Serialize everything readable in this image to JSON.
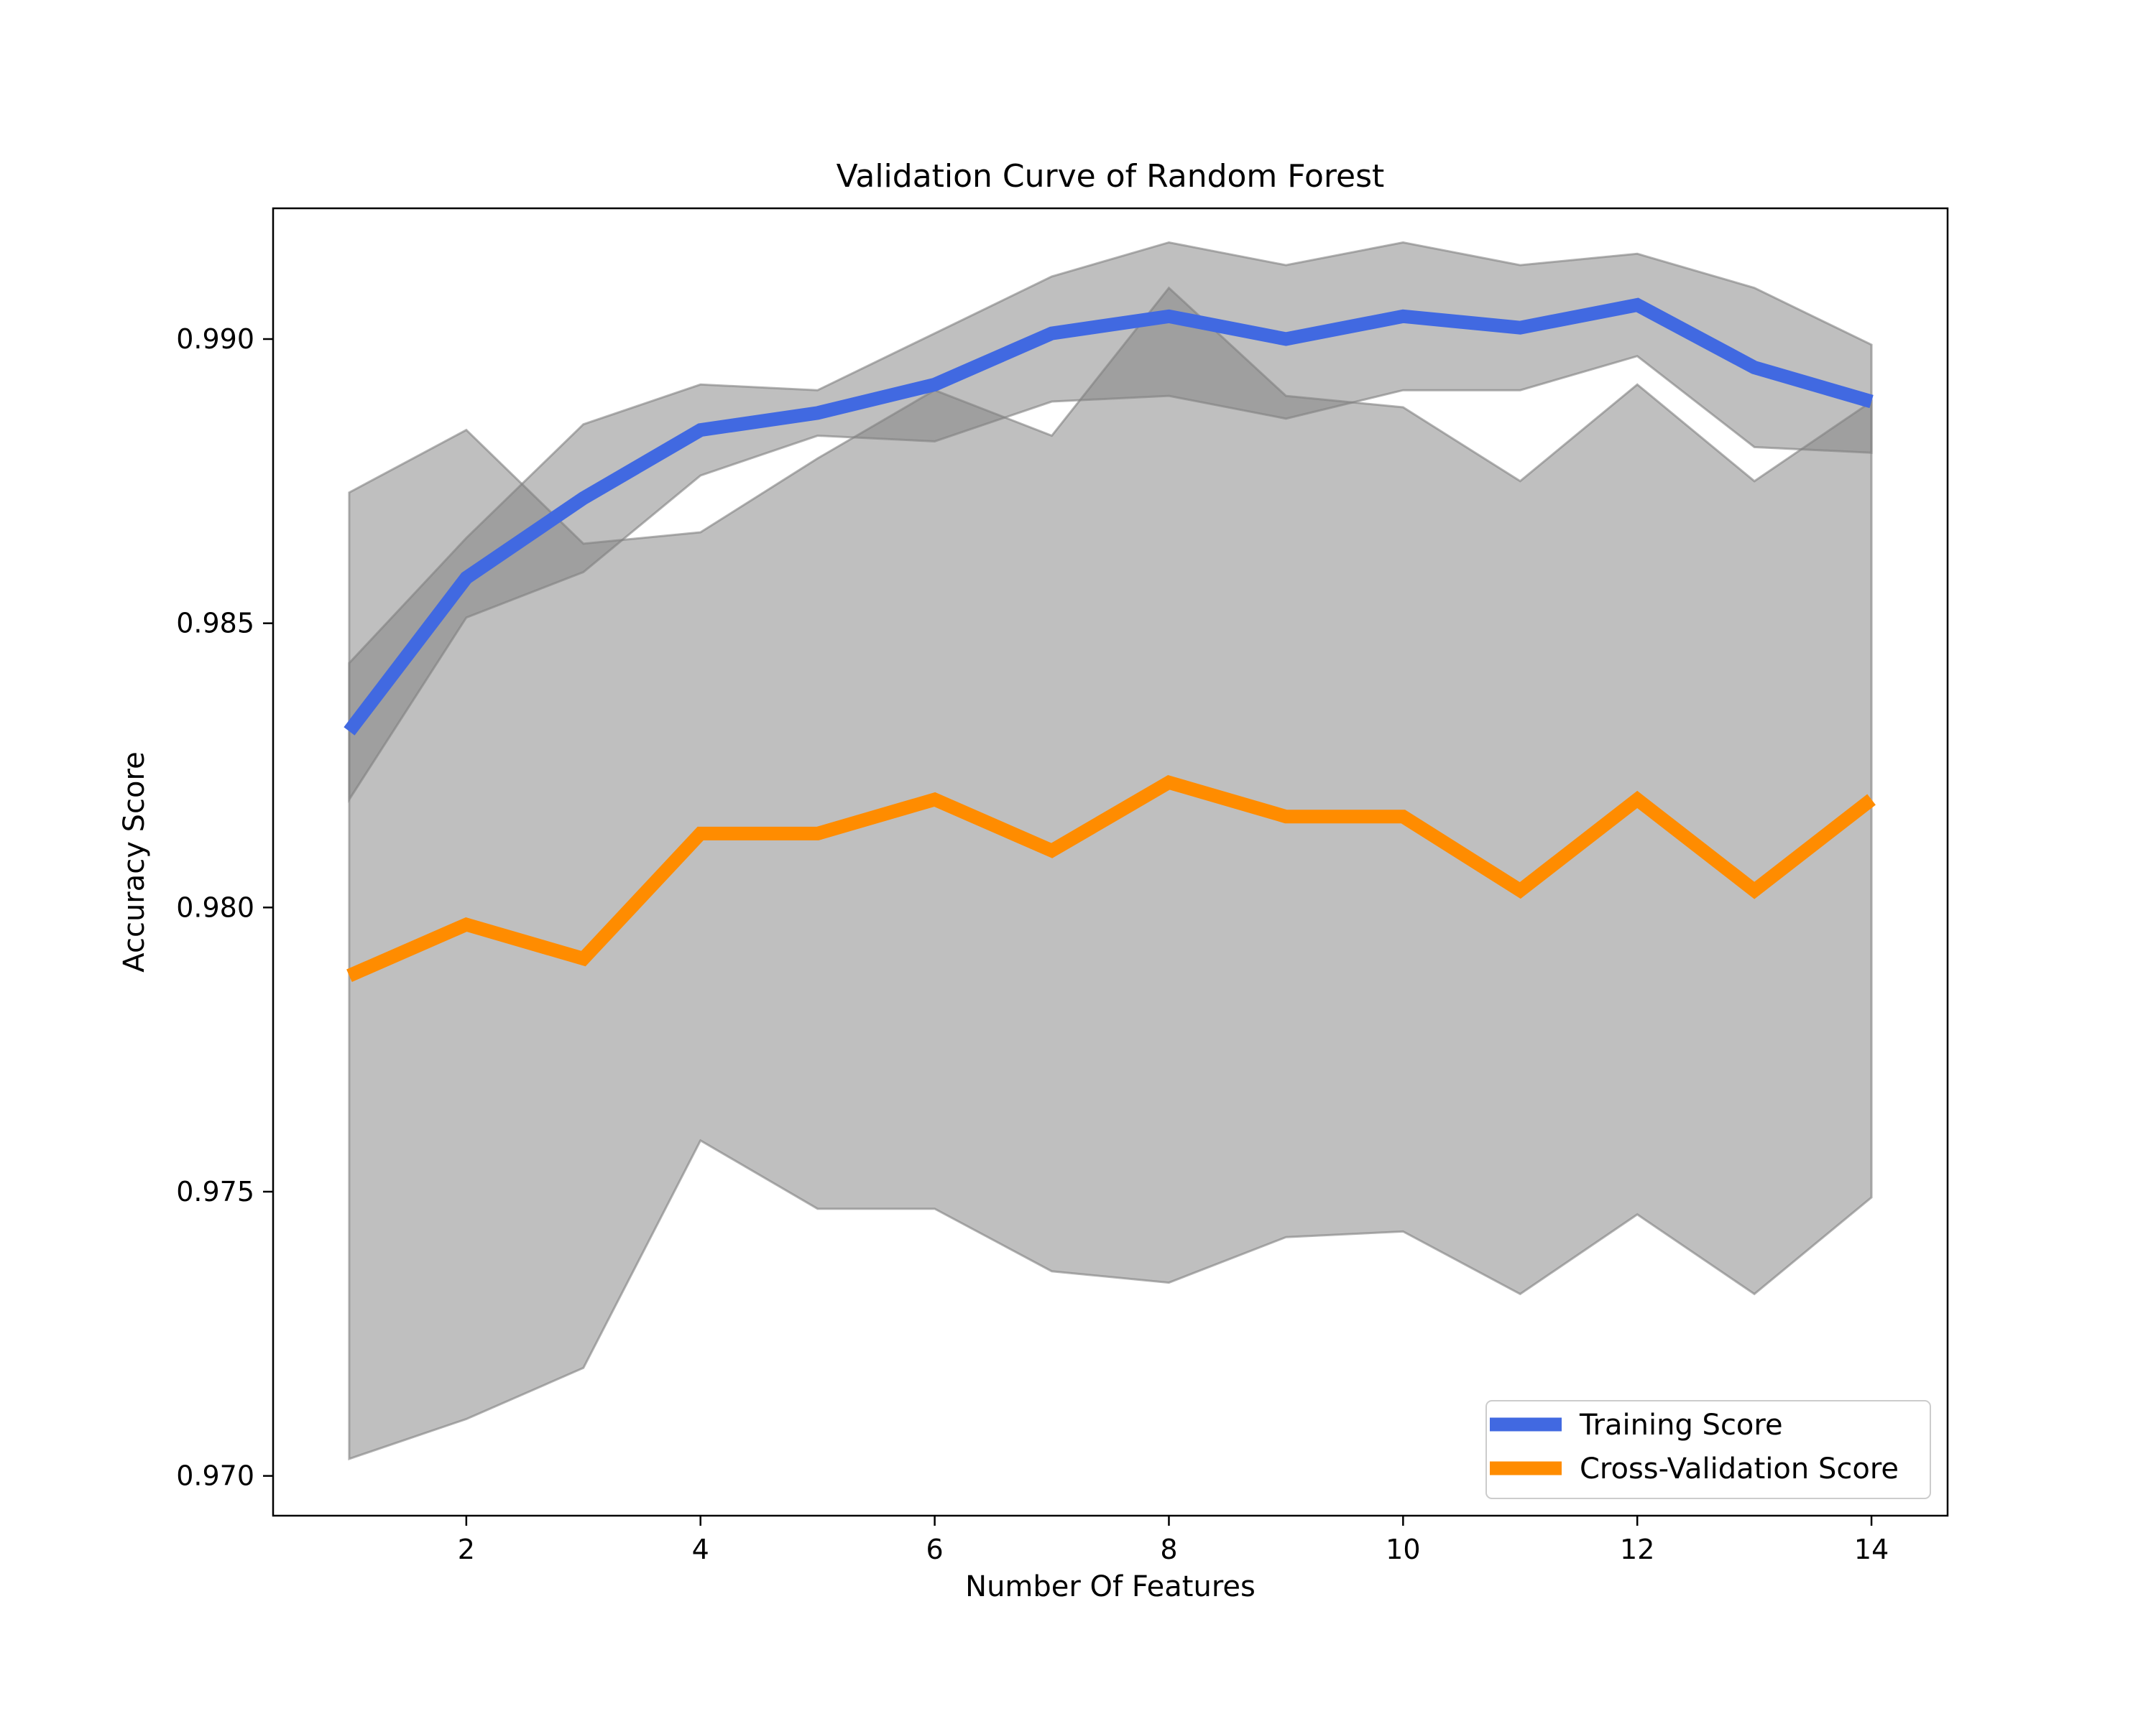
{
  "chart_data": {
    "type": "line",
    "title": "Validation Curve of Random Forest",
    "xlabel": "Number Of Features",
    "ylabel": "Accuracy Score",
    "xlim": [
      0.35,
      14.65
    ],
    "ylim": [
      0.9693,
      0.9923
    ],
    "x_ticks": [
      2,
      4,
      6,
      8,
      10,
      12,
      14
    ],
    "x_tick_labels": [
      "2",
      "4",
      "6",
      "8",
      "10",
      "12",
      "14"
    ],
    "y_ticks": [
      0.97,
      0.975,
      0.98,
      0.985,
      0.99
    ],
    "y_tick_labels": [
      "0.970",
      "0.975",
      "0.980",
      "0.985",
      "0.990"
    ],
    "grid": false,
    "legend_position": "lower-right",
    "x": [
      1,
      2,
      3,
      4,
      5,
      6,
      7,
      8,
      9,
      10,
      11,
      12,
      13,
      14
    ],
    "series": [
      {
        "name": "Training Score",
        "color": "#4169e1",
        "values": [
          0.9831,
          0.9858,
          0.9872,
          0.9884,
          0.9887,
          0.9892,
          0.9901,
          0.9904,
          0.99,
          0.9904,
          0.9902,
          0.9906,
          0.9895,
          0.9889
        ],
        "band_upper": [
          0.9843,
          0.9865,
          0.9885,
          0.9892,
          0.9891,
          0.9901,
          0.9911,
          0.9917,
          0.9913,
          0.9917,
          0.9913,
          0.9915,
          0.9909,
          0.9899
        ],
        "band_lower": [
          0.9819,
          0.9851,
          0.9859,
          0.9876,
          0.9883,
          0.9882,
          0.9889,
          0.989,
          0.9886,
          0.9891,
          0.9891,
          0.9897,
          0.9881,
          0.988
        ]
      },
      {
        "name": "Cross-Validation Score",
        "color": "#ff8c00",
        "values": [
          0.9788,
          0.9797,
          0.9791,
          0.9813,
          0.9813,
          0.9819,
          0.981,
          0.9822,
          0.9816,
          0.9816,
          0.9803,
          0.9819,
          0.9803,
          0.9819
        ],
        "band_upper": [
          0.9873,
          0.9884,
          0.9864,
          0.9866,
          0.9879,
          0.9891,
          0.9883,
          0.9909,
          0.989,
          0.9888,
          0.9875,
          0.9892,
          0.9875,
          0.9889
        ],
        "band_lower": [
          0.9703,
          0.971,
          0.9719,
          0.9759,
          0.9747,
          0.9747,
          0.9736,
          0.9734,
          0.9742,
          0.9743,
          0.9732,
          0.9746,
          0.9732,
          0.9749
        ]
      }
    ],
    "band_color": "#808080"
  }
}
